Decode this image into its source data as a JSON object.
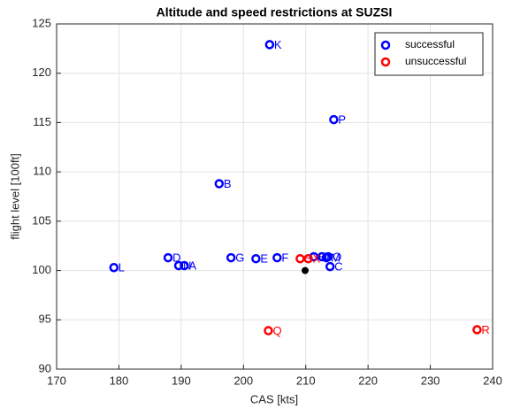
{
  "chart_data": {
    "type": "scatter",
    "title": "Altitude and speed restrictions at SUZSI",
    "x_label": "CAS [kts]",
    "y_label": "flight level [100ft]",
    "xlim": [
      170,
      240
    ],
    "xticks": [
      170,
      180,
      190,
      200,
      210,
      220,
      230,
      240
    ],
    "ylim": [
      90,
      125
    ],
    "yticks": [
      90,
      95,
      100,
      105,
      110,
      115,
      120,
      125
    ],
    "grid": true,
    "legend": "upper right",
    "series": [
      {
        "name": "successful",
        "color": "#0000ff",
        "x": [
          204.2,
          214.5,
          196.1,
          179.2,
          187.9,
          189.6,
          190.5,
          198.0,
          202.0,
          205.4,
          213.9,
          211.3,
          212.6,
          213.3,
          213.6
        ],
        "y": [
          122.9,
          115.3,
          108.8,
          100.3,
          101.3,
          100.5,
          100.5,
          101.3,
          101.2,
          101.3,
          100.4,
          101.4,
          101.4,
          101.3,
          101.4
        ],
        "labels": [
          "K",
          "P",
          "B",
          "L",
          "D",
          "N",
          "A",
          "G",
          "E",
          "F",
          "C",
          "H",
          "I",
          "M",
          "O"
        ]
      },
      {
        "name": "unsuccessful",
        "color": "#ff0000",
        "x": [
          209.1,
          210.4,
          204.0,
          237.5
        ],
        "y": [
          101.2,
          101.2,
          93.9,
          94.0
        ],
        "labels": [
          "S",
          "X",
          "Q",
          "R"
        ]
      },
      {
        "color": "#000000",
        "filled": true,
        "x": [
          209.9
        ],
        "y": [
          100.0
        ]
      }
    ]
  }
}
